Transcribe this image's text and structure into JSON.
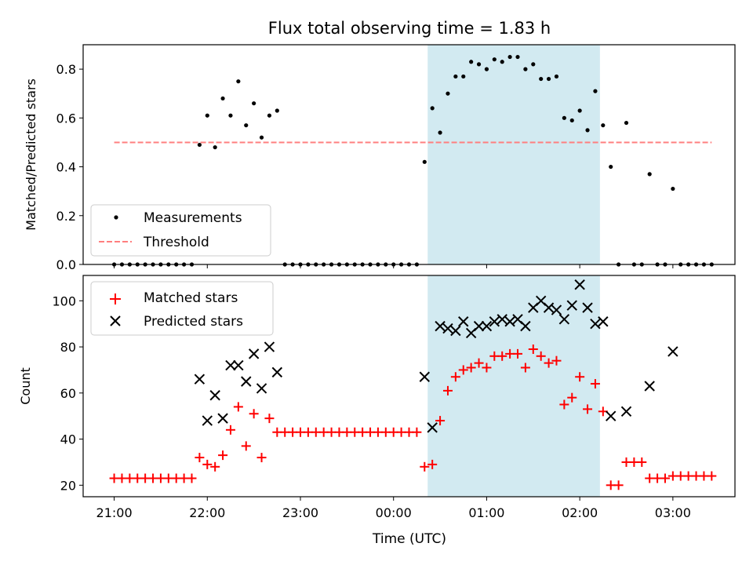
{
  "title": "Flux total observing time = 1.83 h",
  "colors": {
    "measurement": "#000000",
    "threshold": "#ff7f7f",
    "matched": "#ff0000",
    "predicted": "#000000",
    "window_fill": "#add8e6"
  },
  "chart_data": [
    {
      "type": "scatter",
      "ylabel": "Matched/Predicted stars",
      "ylim": [
        0,
        0.9
      ],
      "yticks": [
        "0.0",
        "0.2",
        "0.4",
        "0.6",
        "0.8"
      ],
      "legend": {
        "placement": "lower-left",
        "entries": [
          "Measurements",
          "Threshold"
        ]
      },
      "threshold": 0.5,
      "series": [
        {
          "name": "Measurements",
          "points": [
            [
              "21:00",
              0.0
            ],
            [
              "21:05",
              0.0
            ],
            [
              "21:10",
              0.0
            ],
            [
              "21:15",
              0.0
            ],
            [
              "21:20",
              0.0
            ],
            [
              "21:25",
              0.0
            ],
            [
              "21:30",
              0.0
            ],
            [
              "21:35",
              0.0
            ],
            [
              "21:40",
              0.0
            ],
            [
              "21:45",
              0.0
            ],
            [
              "21:50",
              0.0
            ],
            [
              "21:55",
              0.49
            ],
            [
              "22:00",
              0.61
            ],
            [
              "22:05",
              0.48
            ],
            [
              "22:10",
              0.68
            ],
            [
              "22:15",
              0.61
            ],
            [
              "22:20",
              0.75
            ],
            [
              "22:25",
              0.57
            ],
            [
              "22:30",
              0.66
            ],
            [
              "22:35",
              0.52
            ],
            [
              "22:40",
              0.61
            ],
            [
              "22:45",
              0.63
            ],
            [
              "22:50",
              0.0
            ],
            [
              "22:55",
              0.0
            ],
            [
              "23:00",
              0.0
            ],
            [
              "23:05",
              0.0
            ],
            [
              "23:10",
              0.0
            ],
            [
              "23:15",
              0.0
            ],
            [
              "23:20",
              0.0
            ],
            [
              "23:25",
              0.0
            ],
            [
              "23:30",
              0.0
            ],
            [
              "23:35",
              0.0
            ],
            [
              "23:40",
              0.0
            ],
            [
              "23:45",
              0.0
            ],
            [
              "23:50",
              0.0
            ],
            [
              "23:55",
              0.0
            ],
            [
              "00:00",
              0.0
            ],
            [
              "00:05",
              0.0
            ],
            [
              "00:10",
              0.0
            ],
            [
              "00:15",
              0.0
            ],
            [
              "00:20",
              0.42
            ],
            [
              "00:25",
              0.64
            ],
            [
              "00:30",
              0.54
            ],
            [
              "00:35",
              0.7
            ],
            [
              "00:40",
              0.77
            ],
            [
              "00:45",
              0.77
            ],
            [
              "00:50",
              0.83
            ],
            [
              "00:55",
              0.82
            ],
            [
              "01:00",
              0.8
            ],
            [
              "01:05",
              0.84
            ],
            [
              "01:10",
              0.83
            ],
            [
              "01:15",
              0.85
            ],
            [
              "01:20",
              0.85
            ],
            [
              "01:25",
              0.8
            ],
            [
              "01:30",
              0.82
            ],
            [
              "01:35",
              0.76
            ],
            [
              "01:40",
              0.76
            ],
            [
              "01:45",
              0.77
            ],
            [
              "01:50",
              0.6
            ],
            [
              "01:55",
              0.59
            ],
            [
              "02:00",
              0.63
            ],
            [
              "02:05",
              0.55
            ],
            [
              "02:10",
              0.71
            ],
            [
              "02:15",
              0.57
            ],
            [
              "02:20",
              0.4
            ],
            [
              "02:25",
              0.0
            ],
            [
              "02:30",
              0.58
            ],
            [
              "02:35",
              0.0
            ],
            [
              "02:40",
              0.0
            ],
            [
              "02:45",
              0.37
            ],
            [
              "02:50",
              0.0
            ],
            [
              "02:55",
              0.0
            ],
            [
              "03:00",
              0.31
            ],
            [
              "03:05",
              0.0
            ],
            [
              "03:10",
              0.0
            ],
            [
              "03:15",
              0.0
            ],
            [
              "03:20",
              0.0
            ],
            [
              "03:25",
              0.0
            ]
          ]
        }
      ]
    },
    {
      "type": "scatter",
      "ylabel": "Count",
      "xlabel": "Time (UTC)",
      "ylim": [
        15,
        111
      ],
      "yticks": [
        "20",
        "40",
        "60",
        "80",
        "100"
      ],
      "xticks": [
        "21:00",
        "22:00",
        "23:00",
        "00:00",
        "01:00",
        "02:00",
        "03:00"
      ],
      "legend": {
        "placement": "upper-left",
        "entries": [
          "Matched stars",
          "Predicted stars"
        ]
      },
      "series": [
        {
          "name": "Matched stars",
          "points": [
            [
              "21:00",
              23
            ],
            [
              "21:05",
              23
            ],
            [
              "21:10",
              23
            ],
            [
              "21:15",
              23
            ],
            [
              "21:20",
              23
            ],
            [
              "21:25",
              23
            ],
            [
              "21:30",
              23
            ],
            [
              "21:35",
              23
            ],
            [
              "21:40",
              23
            ],
            [
              "21:45",
              23
            ],
            [
              "21:50",
              23
            ],
            [
              "21:55",
              32
            ],
            [
              "22:00",
              29
            ],
            [
              "22:05",
              28
            ],
            [
              "22:10",
              33
            ],
            [
              "22:15",
              44
            ],
            [
              "22:20",
              54
            ],
            [
              "22:25",
              37
            ],
            [
              "22:30",
              51
            ],
            [
              "22:35",
              32
            ],
            [
              "22:40",
              49
            ],
            [
              "22:45",
              43
            ],
            [
              "22:50",
              43
            ],
            [
              "22:55",
              43
            ],
            [
              "23:00",
              43
            ],
            [
              "23:05",
              43
            ],
            [
              "23:10",
              43
            ],
            [
              "23:15",
              43
            ],
            [
              "23:20",
              43
            ],
            [
              "23:25",
              43
            ],
            [
              "23:30",
              43
            ],
            [
              "23:35",
              43
            ],
            [
              "23:40",
              43
            ],
            [
              "23:45",
              43
            ],
            [
              "23:50",
              43
            ],
            [
              "23:55",
              43
            ],
            [
              "00:00",
              43
            ],
            [
              "00:05",
              43
            ],
            [
              "00:10",
              43
            ],
            [
              "00:15",
              43
            ],
            [
              "00:20",
              28
            ],
            [
              "00:25",
              29
            ],
            [
              "00:30",
              48
            ],
            [
              "00:35",
              61
            ],
            [
              "00:40",
              67
            ],
            [
              "00:45",
              70
            ],
            [
              "00:50",
              71
            ],
            [
              "00:55",
              73
            ],
            [
              "01:00",
              71
            ],
            [
              "01:05",
              76
            ],
            [
              "01:10",
              76
            ],
            [
              "01:15",
              77
            ],
            [
              "01:20",
              77
            ],
            [
              "01:25",
              71
            ],
            [
              "01:30",
              79
            ],
            [
              "01:35",
              76
            ],
            [
              "01:40",
              73
            ],
            [
              "01:45",
              74
            ],
            [
              "01:50",
              55
            ],
            [
              "01:55",
              58
            ],
            [
              "02:00",
              67
            ],
            [
              "02:05",
              53
            ],
            [
              "02:10",
              64
            ],
            [
              "02:15",
              52
            ],
            [
              "02:20",
              20
            ],
            [
              "02:25",
              20
            ],
            [
              "02:30",
              30
            ],
            [
              "02:35",
              30
            ],
            [
              "02:40",
              30
            ],
            [
              "02:45",
              23
            ],
            [
              "02:50",
              23
            ],
            [
              "02:55",
              23
            ],
            [
              "03:00",
              24
            ],
            [
              "03:05",
              24
            ],
            [
              "03:10",
              24
            ],
            [
              "03:15",
              24
            ],
            [
              "03:20",
              24
            ],
            [
              "03:25",
              24
            ]
          ]
        },
        {
          "name": "Predicted stars",
          "points": [
            [
              "21:55",
              66
            ],
            [
              "22:00",
              48
            ],
            [
              "22:05",
              59
            ],
            [
              "22:10",
              49
            ],
            [
              "22:15",
              72
            ],
            [
              "22:20",
              72
            ],
            [
              "22:25",
              65
            ],
            [
              "22:30",
              77
            ],
            [
              "22:35",
              62
            ],
            [
              "22:40",
              80
            ],
            [
              "22:45",
              69
            ],
            [
              "00:20",
              67
            ],
            [
              "00:25",
              45
            ],
            [
              "00:30",
              89
            ],
            [
              "00:35",
              88
            ],
            [
              "00:40",
              87
            ],
            [
              "00:45",
              91
            ],
            [
              "00:50",
              86
            ],
            [
              "00:55",
              89
            ],
            [
              "01:00",
              89
            ],
            [
              "01:05",
              91
            ],
            [
              "01:10",
              92
            ],
            [
              "01:15",
              91
            ],
            [
              "01:20",
              92
            ],
            [
              "01:25",
              89
            ],
            [
              "01:30",
              97
            ],
            [
              "01:35",
              100
            ],
            [
              "01:40",
              97
            ],
            [
              "01:45",
              96
            ],
            [
              "01:50",
              92
            ],
            [
              "01:55",
              98
            ],
            [
              "02:00",
              107
            ],
            [
              "02:05",
              97
            ],
            [
              "02:10",
              90
            ],
            [
              "02:15",
              91
            ],
            [
              "02:20",
              50
            ],
            [
              "02:30",
              52
            ],
            [
              "02:45",
              63
            ],
            [
              "03:00",
              78
            ]
          ]
        }
      ]
    }
  ],
  "shaded_window": {
    "start": "00:22",
    "end": "02:13"
  },
  "x_range": {
    "start": "20:40",
    "end": "03:40"
  }
}
